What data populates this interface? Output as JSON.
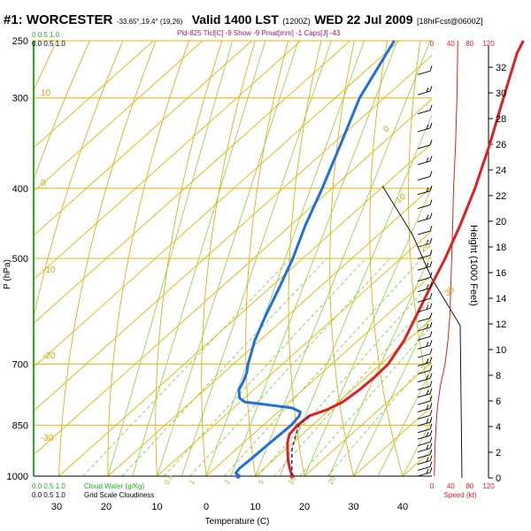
{
  "header": {
    "station": "#1: WORCESTER",
    "coords": "-33.65°,19.4° (19,26)",
    "valid": "Valid 1400 LST",
    "utc": "(1200Z)",
    "date": "WED 22 Jul 2009",
    "forecast": "[18hrFcst@0600Z]",
    "indices": "Pld-825 Tlcl[C] -9 Show -9 Pmat[mm] -1 Caps[J] -43"
  },
  "colors": {
    "isobar": "#e8b400",
    "temp_line": "#e02020",
    "dew_line": "#1e6fe0",
    "dry_adiabat": "#e6a000",
    "moist_adiabat": "#8ccf3a",
    "mixing_ratio": "#7fc83a",
    "axis_green": "#20b020",
    "speed_red": "#e02020",
    "parcel": "#3a2a8a"
  },
  "chart_data": {
    "type": "line",
    "title": "#1: WORCESTER",
    "xlabel": "Temperature (C)",
    "ylabel": "P (hPa)",
    "y2label": "Height (1000 Feet)",
    "pressure_ticks": [
      250,
      300,
      400,
      500,
      700,
      850,
      1000
    ],
    "temp_ticks": [
      -10,
      0,
      10,
      20,
      30,
      40
    ],
    "height_ticks": [
      0,
      2,
      4,
      6,
      8,
      10,
      12,
      14,
      16,
      18,
      20,
      22,
      24,
      26,
      28,
      30,
      32
    ],
    "xlim": [
      -10,
      45
    ],
    "ylim": [
      1000,
      250
    ],
    "bottom_scale_labels": [
      "30",
      "20",
      "10",
      "0",
      "10",
      "20",
      "30",
      "40"
    ],
    "series": [
      {
        "points": [
          [
            1000,
            17.5
          ],
          [
            975,
            15.2
          ],
          [
            950,
            13.0
          ],
          [
            925,
            11.0
          ],
          [
            900,
            9.0
          ],
          [
            875,
            7.4
          ],
          [
            850,
            7.0
          ],
          [
            825,
            7.3
          ],
          [
            810,
            9.4
          ],
          [
            790,
            10.9
          ],
          [
            760,
            11.5
          ],
          [
            730,
            11.7
          ],
          [
            700,
            11.5
          ],
          [
            650,
            9.4
          ],
          [
            600,
            6.2
          ],
          [
            550,
            2.7
          ],
          [
            500,
            -1.0
          ],
          [
            450,
            -5.5
          ],
          [
            400,
            -10.9
          ],
          [
            350,
            -17.6
          ],
          [
            300,
            -25.7
          ],
          [
            260,
            -33.2
          ],
          [
            250,
            -34.7
          ]
        ]
      },
      {
        "points": [
          [
            1000,
            6.5
          ],
          [
            990,
            5.3
          ],
          [
            975,
            5.0
          ],
          [
            950,
            5.2
          ],
          [
            925,
            5.3
          ],
          [
            900,
            5.4
          ],
          [
            850,
            5.7
          ],
          [
            825,
            5.2
          ],
          [
            815,
            4.5
          ],
          [
            805,
            2.0
          ],
          [
            800,
            -1.5
          ],
          [
            795,
            -5.0
          ],
          [
            790,
            -9.0
          ],
          [
            780,
            -11.0
          ],
          [
            760,
            -13.0
          ],
          [
            740,
            -14.0
          ],
          [
            720,
            -15.3
          ],
          [
            700,
            -17.0
          ],
          [
            650,
            -21.0
          ],
          [
            600,
            -24.5
          ],
          [
            550,
            -28.0
          ],
          [
            500,
            -32.0
          ],
          [
            450,
            -37.0
          ],
          [
            400,
            -42.0
          ],
          [
            350,
            -48.0
          ],
          [
            300,
            -55.0
          ],
          [
            250,
            -61.0
          ]
        ]
      }
    ],
    "speed_axis": {
      "top_labels": [
        "0",
        "40",
        "80",
        "120"
      ],
      "bottom_labels": [
        "0",
        "40",
        "80",
        "120"
      ],
      "label": "Speed (kt)",
      "profile": [
        [
          1000,
          5
        ],
        [
          950,
          6
        ],
        [
          900,
          7
        ],
        [
          850,
          9
        ],
        [
          800,
          12
        ],
        [
          750,
          18
        ],
        [
          700,
          28
        ],
        [
          650,
          34
        ],
        [
          600,
          38
        ],
        [
          550,
          40
        ],
        [
          500,
          42
        ],
        [
          450,
          44
        ],
        [
          400,
          46
        ],
        [
          350,
          50
        ],
        [
          300,
          53
        ],
        [
          250,
          55
        ]
      ]
    },
    "dry_adiabat_labels": [
      "10",
      "0",
      "-10",
      "-20",
      "-30"
    ],
    "moist_adiabat_labels": [
      "0",
      "10",
      "20",
      "30"
    ],
    "mixing_ratio_labels": [
      "0.5",
      "1",
      "2",
      "5",
      "10",
      "20"
    ],
    "legend": {
      "top": "0.0  0.5  1.0",
      "cloud_water": "Cloud Water (g/Kg)",
      "grid_cloudiness": "Grid Scale Cloudiness",
      "top_green": "0  0.5  1.0"
    }
  }
}
